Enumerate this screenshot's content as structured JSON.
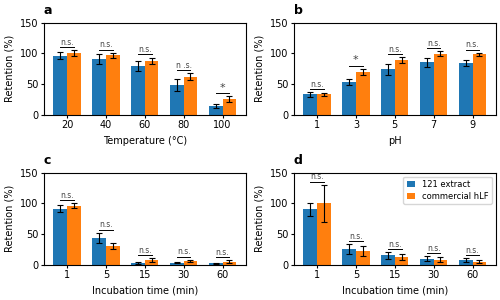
{
  "chart_data": [
    {
      "type": "bar",
      "title": "a",
      "xlabel": "Temperature (°C)",
      "ylabel": "Retention (%)",
      "categories": [
        "20",
        "40",
        "60",
        "80",
        "100"
      ],
      "series": [
        {
          "values": [
            96,
            91,
            79,
            48,
            14
          ],
          "errors": [
            6,
            8,
            8,
            10,
            3
          ]
        },
        {
          "values": [
            100,
            97,
            88,
            62,
            25
          ],
          "errors": [
            5,
            4,
            5,
            6,
            5
          ]
        }
      ],
      "ylim": [
        0,
        150
      ],
      "yticks": [
        0,
        50,
        100,
        150
      ],
      "annotations": [
        "n.s.",
        "n.s.",
        "n.s.",
        "n .s.",
        "*"
      ]
    },
    {
      "type": "bar",
      "title": "b",
      "xlabel": "pH",
      "ylabel": "Retention (%)",
      "categories": [
        "1",
        "3",
        "5",
        "7",
        "9"
      ],
      "series": [
        {
          "values": [
            33,
            53,
            74,
            85,
            84
          ],
          "errors": [
            4,
            5,
            9,
            7,
            5
          ]
        },
        {
          "values": [
            33,
            70,
            89,
            99,
            98
          ],
          "errors": [
            3,
            5,
            5,
            4,
            3
          ]
        }
      ],
      "ylim": [
        0,
        150
      ],
      "yticks": [
        0,
        50,
        100,
        150
      ],
      "annotations": [
        "n.s.",
        "*",
        "n.s.",
        "n.s.",
        "n.s."
      ]
    },
    {
      "type": "bar",
      "title": "c",
      "xlabel": "Incubation time (min)",
      "ylabel": "Retention (%)",
      "categories": [
        "1",
        "5",
        "15",
        "30",
        "60"
      ],
      "series": [
        {
          "values": [
            91,
            44,
            3,
            3,
            2
          ],
          "errors": [
            6,
            8,
            2,
            1,
            1
          ]
        },
        {
          "values": [
            96,
            31,
            8,
            6,
            5
          ],
          "errors": [
            4,
            5,
            3,
            2,
            2
          ]
        }
      ],
      "ylim": [
        0,
        150
      ],
      "yticks": [
        0,
        50,
        100,
        150
      ],
      "annotations": [
        "n.s.",
        "n.s.",
        "n.s.",
        "n.s.",
        "n.s."
      ]
    },
    {
      "type": "bar",
      "title": "d",
      "xlabel": "Incubation time (min)",
      "ylabel": "Retention (%)",
      "categories": [
        "1",
        "5",
        "15",
        "30",
        "60"
      ],
      "series": [
        {
          "name": "121 extract",
          "values": [
            90,
            25,
            15,
            10,
            8
          ],
          "errors": [
            10,
            8,
            5,
            4,
            3
          ]
        },
        {
          "name": "commercial hLF",
          "values": [
            100,
            22,
            12,
            8,
            5
          ],
          "errors": [
            30,
            8,
            5,
            4,
            2
          ]
        }
      ],
      "ylim": [
        0,
        150
      ],
      "yticks": [
        0,
        50,
        100,
        150
      ],
      "annotations": [
        "n.s.",
        "n.s.",
        "n.s.",
        "n.s.",
        "n.s."
      ],
      "legend": "upper right"
    }
  ]
}
